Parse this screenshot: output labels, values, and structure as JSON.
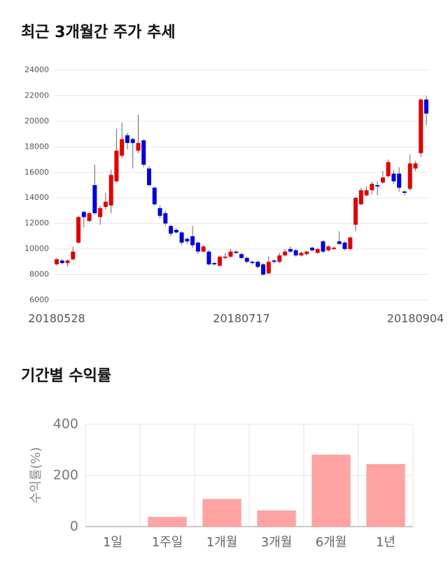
{
  "chart_data": [
    {
      "type": "candlestick",
      "title": "최근 3개월간 주가 추세",
      "categories": [
        "20180528",
        null,
        null,
        null,
        null,
        null,
        null,
        null,
        null,
        null,
        null,
        null,
        null,
        null,
        null,
        null,
        null,
        null,
        null,
        null,
        null,
        null,
        null,
        null,
        null,
        null,
        null,
        null,
        null,
        null,
        null,
        null,
        null,
        null,
        "20180717",
        null,
        null,
        null,
        null,
        null,
        null,
        null,
        null,
        null,
        null,
        null,
        null,
        null,
        null,
        null,
        null,
        null,
        null,
        null,
        null,
        null,
        null,
        null,
        null,
        null,
        null,
        null,
        null,
        null,
        null,
        null,
        "20180904",
        null,
        null
      ],
      "open": [
        8800,
        9100,
        8900,
        9200,
        10500,
        12900,
        12200,
        15000,
        12500,
        13300,
        13400,
        15300,
        17300,
        18900,
        18600,
        17700,
        18500,
        16300,
        14800,
        13200,
        12800,
        11800,
        11500,
        11300,
        10800,
        11000,
        10500,
        9800,
        9800,
        8900,
        8700,
        9300,
        9400,
        9800,
        9600,
        9300,
        9000,
        9000,
        8800,
        8100,
        9100,
        9000,
        9500,
        10000,
        9900,
        9500,
        9600,
        10100,
        9700,
        10600,
        9900,
        10000,
        10600,
        10500,
        10000,
        11900,
        13500,
        14200,
        14600,
        15000,
        15200,
        15700,
        15900,
        15900,
        14500,
        14700,
        16300,
        17500,
        21700
      ],
      "high": [
        9300,
        9200,
        9200,
        10200,
        12600,
        13000,
        12900,
        16600,
        13400,
        14400,
        16200,
        19400,
        19900,
        19100,
        18700,
        20500,
        18600,
        16500,
        14900,
        13400,
        13000,
        11900,
        11600,
        11400,
        10900,
        11800,
        10600,
        10300,
        9900,
        9000,
        9500,
        9700,
        10000,
        9900,
        9700,
        9400,
        9100,
        9100,
        8900,
        9400,
        9200,
        9700,
        10000,
        10200,
        10000,
        9800,
        9900,
        10200,
        10100,
        10700,
        10300,
        10200,
        11400,
        10600,
        11000,
        14100,
        14800,
        14900,
        15300,
        15300,
        16100,
        17000,
        16200,
        16400,
        14600,
        17400,
        16900,
        21800,
        22000
      ],
      "low": [
        8700,
        8800,
        8600,
        9100,
        10400,
        11700,
        12100,
        12700,
        11900,
        13100,
        12800,
        15200,
        17100,
        17800,
        16300,
        17500,
        16400,
        14900,
        13400,
        12400,
        11800,
        11000,
        11200,
        10300,
        10400,
        10100,
        9600,
        9700,
        8700,
        8700,
        8600,
        9200,
        9300,
        9600,
        9200,
        8900,
        8800,
        8500,
        7900,
        8000,
        8900,
        8900,
        9400,
        9700,
        9400,
        9400,
        9500,
        9800,
        9600,
        9700,
        9800,
        9900,
        10300,
        9900,
        9900,
        11400,
        13400,
        14100,
        14300,
        14200,
        15100,
        15600,
        15100,
        14500,
        14200,
        14600,
        16100,
        17200,
        19700
      ],
      "close": [
        9200,
        8900,
        9100,
        9800,
        12500,
        12500,
        12800,
        12800,
        13200,
        13700,
        15800,
        17700,
        18600,
        18300,
        18300,
        18300,
        16600,
        15000,
        13500,
        12600,
        12000,
        11200,
        11300,
        10500,
        10600,
        10300,
        9800,
        10200,
        8800,
        8800,
        9400,
        9400,
        9800,
        9700,
        9300,
        9000,
        8900,
        8600,
        8000,
        9000,
        9000,
        9500,
        9800,
        9800,
        9500,
        9700,
        9800,
        9900,
        10000,
        9800,
        10200,
        10100,
        10400,
        10000,
        10900,
        14000,
        14600,
        14600,
        15100,
        14900,
        15600,
        16800,
        15300,
        14800,
        14400,
        16700,
        16700,
        21700,
        20600
      ],
      "up_color": "#e00000",
      "down_color": "#0000dd",
      "ylim": [
        6000,
        24000
      ],
      "yticks": [
        6000,
        8000,
        10000,
        12000,
        14000,
        16000,
        18000,
        20000,
        22000,
        24000
      ],
      "grid": true
    },
    {
      "type": "bar",
      "title": "기간별 수익률",
      "ylabel": "수익률(%)",
      "categories": [
        "1일",
        "1주일",
        "1개월",
        "3개월",
        "6개월",
        "1년"
      ],
      "values": [
        0,
        37,
        107,
        62,
        280,
        243
      ],
      "color": "#ffa3a3",
      "ylim": [
        0,
        400
      ],
      "yticks": [
        0,
        200,
        400
      ],
      "grid": true
    }
  ]
}
